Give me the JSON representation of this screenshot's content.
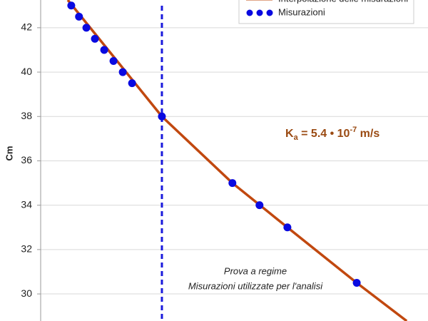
{
  "chart_data": {
    "type": "line",
    "y_label": "Cm",
    "ylim": [
      28.78,
      43.25
    ],
    "yticks": [
      30,
      32,
      34,
      36,
      38,
      40,
      42
    ],
    "grid": true,
    "xlim": [
      0,
      100
    ],
    "series": [
      {
        "name": "Interpolazione delle misurazioni",
        "type": "line",
        "color": "#c1480f",
        "x": [
          7.0,
          31.3,
          49.5,
          63.7,
          81.6,
          94.5
        ],
        "values": [
          43.25,
          38.0,
          35.0,
          33.0,
          30.5,
          28.78
        ]
      },
      {
        "name": "Misurazioni",
        "type": "scatter",
        "color": "#0a0ae0",
        "x": [
          7.9,
          9.9,
          11.8,
          14.0,
          16.4,
          18.8,
          21.2,
          23.6,
          31.3,
          49.5,
          56.5,
          63.7,
          81.6
        ],
        "values": [
          43.0,
          42.5,
          42.0,
          41.5,
          41.0,
          40.5,
          40.0,
          39.5,
          38.0,
          35.0,
          34.0,
          33.0,
          30.5
        ]
      }
    ],
    "vline_x": 31.3,
    "vline_color": "#1a1adc",
    "ka_annotation": {
      "base": "K",
      "sub": "a",
      "mid": " = 5.4 • 10",
      "sup": "-7",
      "unit": " m/s"
    },
    "note_lines": [
      "Prova a regime",
      "Misurazioni utilizzate per l'analisi"
    ]
  }
}
